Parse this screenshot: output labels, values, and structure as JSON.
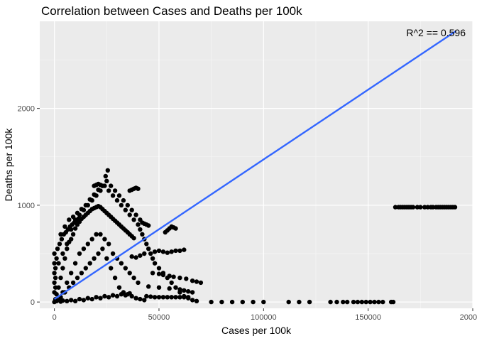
{
  "chart_data": {
    "type": "scatter",
    "title": "Correlation between Cases and Deaths per 100k",
    "xlabel": "Cases per 100k",
    "ylabel": "Deaths per 100k",
    "xlim": [
      -7000,
      200000
    ],
    "ylim": [
      -65,
      2900
    ],
    "x_ticks": [
      0,
      50000,
      100000,
      150000,
      200000
    ],
    "x_tick_labels": [
      "0",
      "50000",
      "100000",
      "150000",
      "200000"
    ],
    "y_ticks": [
      0,
      1000,
      2000
    ],
    "y_tick_labels": [
      "0",
      "1000",
      "2000"
    ],
    "grid": true,
    "legend": "none",
    "annotation": "R^2 ==  0.596",
    "point_color": "#000000",
    "line_color": "#3366ff",
    "panel_color": "#ebebeb",
    "regression_line": {
      "x": [
        0,
        192000
      ],
      "y": [
        30,
        2800
      ]
    },
    "points": {
      "dense_cluster": [
        [
          0,
          0
        ],
        [
          500,
          30
        ],
        [
          1000,
          80
        ],
        [
          2000,
          150
        ],
        [
          3000,
          250
        ],
        [
          4000,
          350
        ],
        [
          5000,
          450
        ],
        [
          6000,
          550
        ],
        [
          7000,
          620
        ],
        [
          8000,
          650
        ],
        [
          9000,
          700
        ],
        [
          10000,
          760
        ],
        [
          11000,
          800
        ],
        [
          12000,
          830
        ],
        [
          13000,
          860
        ],
        [
          14000,
          880
        ],
        [
          15000,
          900
        ],
        [
          16000,
          920
        ],
        [
          17000,
          940
        ],
        [
          18000,
          960
        ],
        [
          19000,
          970
        ],
        [
          20000,
          980
        ],
        [
          21000,
          990
        ],
        [
          22000,
          980
        ],
        [
          23000,
          960
        ],
        [
          24000,
          940
        ],
        [
          25000,
          920
        ],
        [
          26000,
          900
        ],
        [
          27000,
          880
        ],
        [
          28000,
          860
        ],
        [
          29000,
          840
        ],
        [
          30000,
          820
        ],
        [
          31000,
          800
        ],
        [
          32000,
          780
        ],
        [
          33000,
          760
        ],
        [
          34000,
          740
        ],
        [
          35000,
          720
        ],
        [
          36000,
          700
        ],
        [
          37000,
          680
        ],
        [
          38000,
          660
        ],
        [
          4000,
          100
        ],
        [
          8000,
          300
        ],
        [
          12000,
          500
        ],
        [
          16000,
          600
        ],
        [
          20000,
          700
        ],
        [
          24000,
          650
        ],
        [
          28000,
          500
        ],
        [
          32000,
          400
        ],
        [
          36000,
          300
        ],
        [
          40000,
          200
        ],
        [
          6000,
          200
        ],
        [
          10000,
          400
        ],
        [
          14000,
          550
        ],
        [
          18000,
          650
        ],
        [
          22000,
          700
        ],
        [
          26000,
          600
        ],
        [
          30000,
          450
        ],
        [
          34000,
          350
        ],
        [
          38000,
          250
        ],
        [
          3000,
          50
        ],
        [
          5000,
          100
        ],
        [
          7000,
          150
        ],
        [
          9000,
          200
        ],
        [
          11000,
          250
        ],
        [
          13000,
          300
        ],
        [
          15000,
          350
        ],
        [
          17000,
          400
        ],
        [
          19000,
          450
        ],
        [
          21000,
          500
        ],
        [
          23000,
          550
        ],
        [
          25000,
          450
        ],
        [
          27000,
          350
        ],
        [
          29000,
          250
        ],
        [
          31000,
          150
        ],
        [
          33000,
          100
        ],
        [
          35000,
          80
        ],
        [
          37000,
          60
        ],
        [
          39000,
          40
        ],
        [
          41000,
          30
        ],
        [
          43000,
          20
        ],
        [
          2000,
          400
        ],
        [
          4000,
          500
        ],
        [
          6000,
          600
        ],
        [
          8000,
          750
        ],
        [
          10000,
          850
        ],
        [
          12000,
          900
        ],
        [
          14000,
          950
        ],
        [
          16000,
          1000
        ],
        [
          18000,
          1050
        ],
        [
          20000,
          1100
        ],
        [
          22000,
          1150
        ],
        [
          24000,
          1200
        ],
        [
          26000,
          1150
        ],
        [
          28000,
          1100
        ],
        [
          30000,
          1050
        ],
        [
          32000,
          1000
        ],
        [
          34000,
          950
        ],
        [
          36000,
          900
        ],
        [
          38000,
          850
        ],
        [
          40000,
          800
        ],
        [
          41000,
          750
        ],
        [
          42000,
          700
        ],
        [
          43000,
          650
        ],
        [
          44000,
          600
        ],
        [
          45000,
          550
        ],
        [
          46000,
          500
        ],
        [
          47000,
          450
        ],
        [
          48000,
          400
        ],
        [
          50000,
          350
        ],
        [
          52000,
          300
        ],
        [
          54000,
          250
        ],
        [
          56000,
          200
        ],
        [
          58000,
          150
        ],
        [
          60000,
          100
        ],
        [
          62000,
          60
        ],
        [
          64000,
          40
        ],
        [
          66000,
          20
        ],
        [
          68000,
          10
        ],
        [
          3000,
          700
        ],
        [
          5000,
          780
        ],
        [
          7000,
          850
        ],
        [
          9000,
          880
        ],
        [
          11000,
          920
        ],
        [
          13000,
          960
        ],
        [
          15000,
          1000
        ],
        [
          17000,
          1060
        ],
        [
          19000,
          1110
        ],
        [
          21000,
          1160
        ],
        [
          23000,
          1200
        ],
        [
          25000,
          1250
        ],
        [
          27000,
          1200
        ],
        [
          29000,
          1150
        ],
        [
          31000,
          1100
        ],
        [
          33000,
          1050
        ],
        [
          35000,
          1000
        ],
        [
          37000,
          950
        ],
        [
          39000,
          900
        ],
        [
          41000,
          850
        ],
        [
          24500,
          1300
        ],
        [
          25500,
          1360
        ],
        [
          19000,
          1200
        ],
        [
          20000,
          1210
        ],
        [
          21000,
          1220
        ],
        [
          22000,
          1210
        ],
        [
          23000,
          1200
        ],
        [
          36000,
          1150
        ],
        [
          37000,
          1160
        ],
        [
          38000,
          1170
        ],
        [
          39000,
          1180
        ],
        [
          40000,
          1170
        ],
        [
          42000,
          820
        ],
        [
          43000,
          810
        ],
        [
          44000,
          800
        ],
        [
          45000,
          790
        ],
        [
          53000,
          720
        ],
        [
          54000,
          740
        ],
        [
          55000,
          760
        ],
        [
          56000,
          780
        ],
        [
          57000,
          770
        ],
        [
          58000,
          760
        ],
        [
          48000,
          520
        ],
        [
          50000,
          530
        ],
        [
          52000,
          520
        ],
        [
          54000,
          510
        ],
        [
          56000,
          520
        ],
        [
          58000,
          530
        ],
        [
          60000,
          530
        ],
        [
          62000,
          540
        ],
        [
          47000,
          300
        ],
        [
          50000,
          290
        ],
        [
          52000,
          280
        ],
        [
          55000,
          270
        ],
        [
          57000,
          260
        ],
        [
          60000,
          250
        ],
        [
          63000,
          240
        ],
        [
          66000,
          220
        ],
        [
          68000,
          210
        ],
        [
          70000,
          200
        ],
        [
          45000,
          160
        ],
        [
          50000,
          150
        ],
        [
          55000,
          140
        ],
        [
          60000,
          130
        ],
        [
          62000,
          120
        ],
        [
          64000,
          110
        ],
        [
          66000,
          100
        ],
        [
          44000,
          60
        ],
        [
          46000,
          55
        ],
        [
          48000,
          50
        ],
        [
          50000,
          50
        ],
        [
          52000,
          50
        ],
        [
          54000,
          50
        ],
        [
          56000,
          50
        ],
        [
          58000,
          50
        ],
        [
          60000,
          50
        ],
        [
          62000,
          50
        ],
        [
          64000,
          50
        ],
        [
          37000,
          470
        ],
        [
          39000,
          460
        ],
        [
          41000,
          480
        ],
        [
          43000,
          500
        ],
        [
          1000,
          10
        ],
        [
          2000,
          20
        ],
        [
          3000,
          5
        ],
        [
          4000,
          15
        ],
        [
          6000,
          10
        ],
        [
          8000,
          20
        ],
        [
          10000,
          10
        ],
        [
          12000,
          30
        ],
        [
          14000,
          20
        ],
        [
          16000,
          40
        ],
        [
          18000,
          30
        ],
        [
          20000,
          50
        ],
        [
          22000,
          40
        ],
        [
          24000,
          60
        ],
        [
          26000,
          50
        ],
        [
          28000,
          70
        ],
        [
          30000,
          60
        ],
        [
          32000,
          80
        ],
        [
          34000,
          70
        ],
        [
          36000,
          90
        ],
        [
          0,
          100
        ],
        [
          0,
          200
        ],
        [
          0,
          300
        ],
        [
          0,
          400
        ],
        [
          0,
          500
        ],
        [
          500,
          150
        ],
        [
          500,
          250
        ],
        [
          500,
          350
        ],
        [
          1000,
          450
        ],
        [
          1500,
          550
        ],
        [
          2500,
          600
        ],
        [
          3500,
          650
        ],
        [
          4500,
          700
        ],
        [
          5500,
          720
        ],
        [
          6500,
          750
        ],
        [
          7500,
          780
        ],
        [
          8500,
          800
        ],
        [
          9500,
          820
        ],
        [
          10500,
          840
        ],
        [
          11500,
          860
        ]
      ],
      "zero_line": [
        [
          75000,
          0
        ],
        [
          80000,
          0
        ],
        [
          85000,
          0
        ],
        [
          90000,
          0
        ],
        [
          95000,
          0
        ],
        [
          100000,
          0
        ],
        [
          112000,
          0
        ],
        [
          117000,
          0
        ],
        [
          122000,
          0
        ],
        [
          132000,
          0
        ],
        [
          135000,
          0
        ],
        [
          138000,
          0
        ],
        [
          140000,
          0
        ],
        [
          143000,
          0
        ],
        [
          145000,
          0
        ],
        [
          147000,
          0
        ],
        [
          149000,
          0
        ],
        [
          151000,
          0
        ],
        [
          153000,
          0
        ],
        [
          155000,
          0
        ],
        [
          157000,
          0
        ],
        [
          161000,
          0
        ],
        [
          162000,
          0
        ]
      ],
      "outlier_row": [
        [
          163000,
          980
        ],
        [
          164500,
          980
        ],
        [
          165500,
          980
        ],
        [
          166500,
          980
        ],
        [
          167500,
          980
        ],
        [
          168500,
          980
        ],
        [
          169500,
          980
        ],
        [
          170500,
          980
        ],
        [
          171500,
          980
        ],
        [
          173500,
          980
        ],
        [
          175000,
          980
        ],
        [
          177000,
          980
        ],
        [
          178500,
          980
        ],
        [
          180000,
          980
        ],
        [
          181000,
          980
        ],
        [
          182500,
          980
        ],
        [
          183500,
          980
        ],
        [
          184500,
          980
        ],
        [
          185500,
          980
        ],
        [
          186500,
          980
        ],
        [
          187500,
          980
        ],
        [
          188500,
          980
        ],
        [
          189500,
          980
        ],
        [
          190500,
          980
        ],
        [
          191500,
          980
        ]
      ]
    }
  }
}
